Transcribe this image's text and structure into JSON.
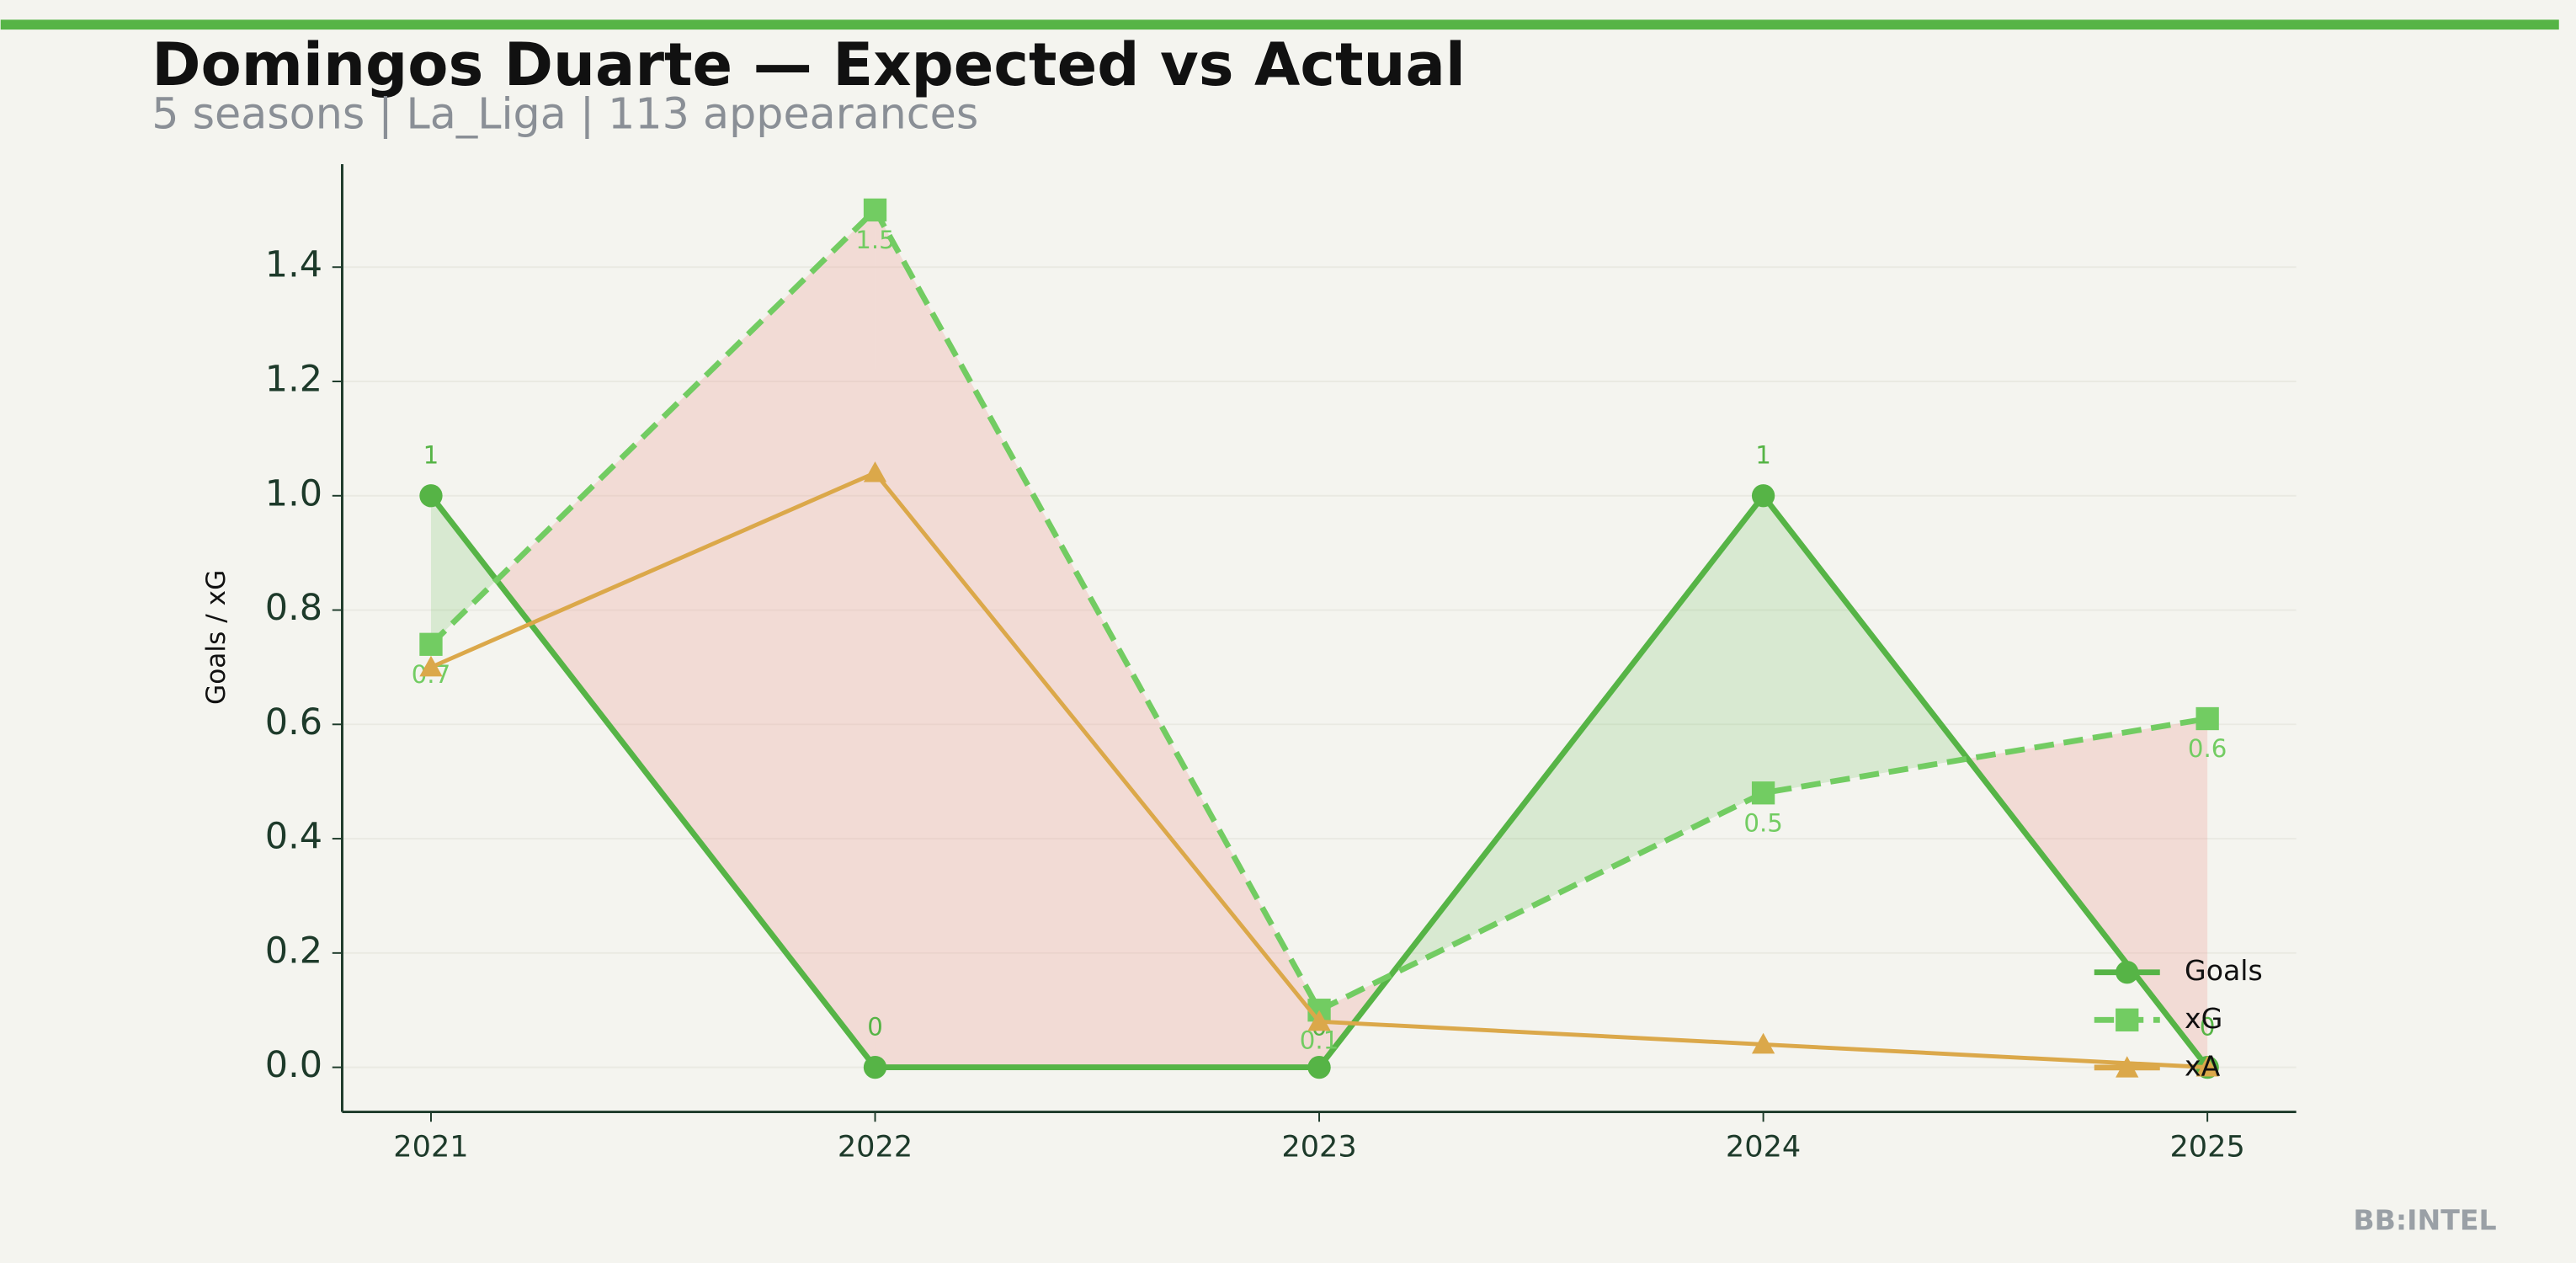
{
  "chart_data": {
    "type": "line",
    "title": "Domingos Duarte — Expected vs Actual",
    "subtitle": "5 seasons | La_Liga | 113 appearances",
    "y_label": "Goals / xG",
    "watermark": "BB:INTEL",
    "x": [
      2021,
      2022,
      2023,
      2024,
      2025
    ],
    "xlim": [
      2020.8,
      2025.2
    ],
    "xticks": [
      2021,
      2022,
      2023,
      2024,
      2025
    ],
    "ylim": [
      -0.078,
      1.58
    ],
    "yticks": [
      {
        "value": 0,
        "label": "0.0"
      },
      {
        "value": 0.2,
        "label": "0.2"
      },
      {
        "value": 0.4,
        "label": "0.4"
      },
      {
        "value": 0.6,
        "label": "0.6"
      },
      {
        "value": 0.8,
        "label": "0.8"
      },
      {
        "value": 1.0,
        "label": "1.0"
      },
      {
        "value": 1.2,
        "label": "1.2"
      },
      {
        "value": 1.4,
        "label": "1.4"
      }
    ],
    "grid": true,
    "legend": "lower right",
    "over_color": "#5ab74a",
    "under_color": "#eea199",
    "series": [
      {
        "name": "Goals",
        "color": "#56b446",
        "marker": "circle",
        "dash": false,
        "values": [
          1,
          0,
          0,
          1,
          0
        ]
      },
      {
        "name": "xG",
        "color": "#72cc62",
        "marker": "square",
        "dash": true,
        "values": [
          0.74,
          1.5,
          0.1,
          0.48,
          0.61
        ],
        "value_labels": [
          "0.7",
          "1.5",
          "0.1",
          "0.5",
          "0.6"
        ]
      },
      {
        "name": "xA",
        "color": "#dba84a",
        "marker": "triangle",
        "dash": false,
        "values": [
          0.7,
          1.04,
          0.08,
          0.04,
          0.0
        ]
      }
    ]
  }
}
